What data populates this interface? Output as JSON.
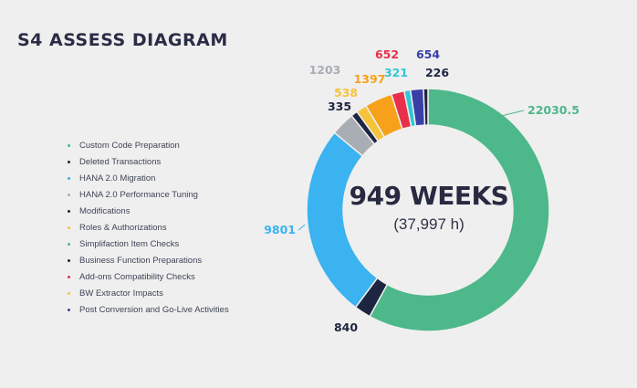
{
  "page": {
    "title": "S4 ASSESS DIAGRAM"
  },
  "center": {
    "main": "949 WEEKS",
    "sub": "(37,997 h)"
  },
  "legend": [
    {
      "label": "Custom Code Preparation",
      "color": "#4db88a"
    },
    {
      "label": "Deleted Transactions",
      "color": "#1e2540"
    },
    {
      "label": "HANA 2.0 Migration",
      "color": "#3ab3f0"
    },
    {
      "label": "HANA 2.0 Performance Tuning",
      "color": "#a9aeb5"
    },
    {
      "label": "Modifications",
      "color": "#1e2540"
    },
    {
      "label": "Roles & Authorizations",
      "color": "#f5c43b"
    },
    {
      "label": "Simplifaction Item Checks",
      "color": "#4db88a"
    },
    {
      "label": "Business Function Preparations",
      "color": "#1e2540"
    },
    {
      "label": "Add-ons Compatibility Checks",
      "color": "#e8304a"
    },
    {
      "label": "BW Extractor Impacts",
      "color": "#f5c43b"
    },
    {
      "label": "Post Conversion and Go-Live Activities",
      "color": "#3a3fa8"
    }
  ],
  "chart_data": {
    "type": "pie",
    "style": "donut",
    "slices": [
      {
        "label": "22030.5",
        "value": 22030.5,
        "color": "#4db88a",
        "label_color": "#4db88a"
      },
      {
        "label": "840",
        "value": 840,
        "color": "#1e2540",
        "label_color": "#1e2540"
      },
      {
        "label": "9801",
        "value": 9801,
        "color": "#3ab3f0",
        "label_color": "#3ab3f0"
      },
      {
        "label": "1203",
        "value": 1203,
        "color": "#a9aeb5",
        "label_color": "#a9aeb5"
      },
      {
        "label": "335",
        "value": 335,
        "color": "#1e2540",
        "label_color": "#1e2540"
      },
      {
        "label": "538",
        "value": 538,
        "color": "#f5c43b",
        "label_color": "#f5c43b"
      },
      {
        "label": "1397",
        "value": 1397,
        "color": "#f7a11a",
        "label_color": "#f7a11a"
      },
      {
        "label": "652",
        "value": 652,
        "color": "#e8304a",
        "label_color": "#e8304a"
      },
      {
        "label": "321",
        "value": 321,
        "color": "#33c6d4",
        "label_color": "#33c6d4"
      },
      {
        "label": "654",
        "value": 654,
        "color": "#3a3fa8",
        "label_color": "#3a3fa8"
      },
      {
        "label": "226",
        "value": 226,
        "color": "#1e2540",
        "label_color": "#1e2540"
      }
    ]
  }
}
